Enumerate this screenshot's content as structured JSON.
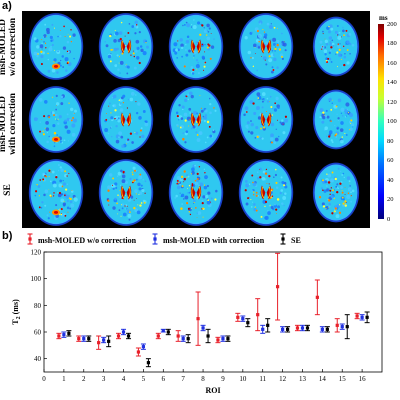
{
  "panel_a": {
    "label": "a)",
    "rows": [
      {
        "label": "msh-MOLED\nw/o correction"
      },
      {
        "label": "msh-MOLED\nwith correction"
      },
      {
        "label": "SE"
      }
    ],
    "columns": 5,
    "colorbar": {
      "unit": "ms",
      "ticks": [
        "200",
        "180",
        "160",
        "140",
        "120",
        "100",
        "80",
        "60",
        "40",
        "20",
        "0"
      ],
      "colormap": "jet"
    }
  },
  "panel_b": {
    "label": "b)",
    "legend": [
      {
        "label": "msh-MOLED w/o correction",
        "color": "#e8202a"
      },
      {
        "label": "msh-MOLED with correction",
        "color": "#2030e0"
      },
      {
        "label": "SE",
        "color": "#000000"
      }
    ]
  },
  "chart_data": {
    "type": "scatter",
    "error_bars": true,
    "xlabel": "ROI",
    "ylabel": "T",
    "ylabel_subscript": "2",
    "ylabel_unit": "(ms)",
    "xlim": [
      0,
      17
    ],
    "ylim": [
      30,
      120
    ],
    "xticks": [
      0,
      1,
      2,
      3,
      4,
      5,
      6,
      7,
      8,
      9,
      10,
      11,
      12,
      13,
      14,
      15,
      16
    ],
    "yticks": [
      40,
      60,
      80,
      100,
      120
    ],
    "categories": [
      1,
      2,
      3,
      4,
      5,
      6,
      7,
      8,
      9,
      10,
      11,
      12,
      13,
      14,
      15,
      16
    ],
    "series": [
      {
        "name": "msh-MOLED w/o correction",
        "color": "#e8202a",
        "values": [
          57,
          55,
          52,
          57,
          45,
          57,
          57,
          70,
          54,
          71,
          73,
          94,
          63,
          86,
          65,
          72
        ],
        "errors": [
          2,
          2,
          5,
          2,
          3,
          2,
          4,
          20,
          2,
          3,
          12,
          25,
          2,
          13,
          5,
          2
        ]
      },
      {
        "name": "msh-MOLED with correction",
        "color": "#2030e0",
        "values": [
          58,
          55,
          54,
          60,
          49,
          61,
          55,
          63,
          55,
          70,
          62,
          62,
          63,
          62,
          64,
          71
        ],
        "errors": [
          2,
          2,
          2,
          2,
          2,
          1,
          2,
          2,
          2,
          2,
          3,
          2,
          2,
          2,
          2,
          2
        ]
      },
      {
        "name": "SE",
        "color": "#000000",
        "values": [
          59,
          55,
          53,
          57,
          37,
          60,
          55,
          57,
          55,
          67,
          65,
          62,
          63,
          62,
          64,
          71
        ],
        "errors": [
          2,
          2,
          4,
          2,
          3,
          2,
          3,
          5,
          2,
          3,
          5,
          2,
          2,
          2,
          9,
          4
        ]
      }
    ]
  }
}
